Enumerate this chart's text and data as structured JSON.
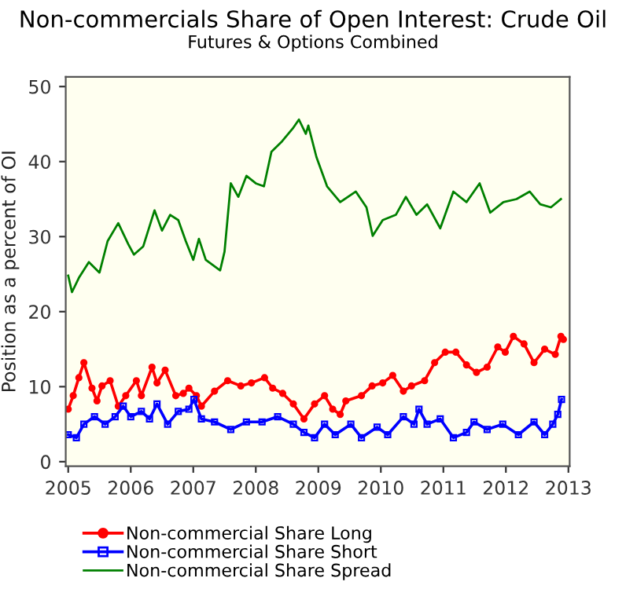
{
  "chart_data": {
    "type": "line",
    "title": "Non-commercials Share of Open Interest: Crude Oil",
    "subtitle": "Futures & Options Combined",
    "ylabel": "Position as a percent of OI",
    "xlim": [
      2004.96,
      2013.02
    ],
    "xticks": [
      2005,
      2006,
      2007,
      2008,
      2009,
      2010,
      2011,
      2012,
      2013
    ],
    "ylim": [
      -0.6,
      51.3
    ],
    "yticks": [
      0,
      10,
      20,
      30,
      40,
      50
    ],
    "grid": false,
    "legend": "bottom",
    "series": [
      {
        "name": "Non-commercial Share Long",
        "color": "#ff0000",
        "marker": "circle",
        "x": [
          2005.0,
          2005.08,
          2005.17,
          2005.25,
          2005.38,
          2005.46,
          2005.54,
          2005.67,
          2005.8,
          2005.92,
          2006.09,
          2006.17,
          2006.34,
          2006.42,
          2006.55,
          2006.72,
          2006.84,
          2006.93,
          2007.05,
          2007.13,
          2007.34,
          2007.55,
          2007.76,
          2007.93,
          2008.14,
          2008.27,
          2008.43,
          2008.6,
          2008.77,
          2008.94,
          2009.1,
          2009.23,
          2009.35,
          2009.44,
          2009.69,
          2009.86,
          2010.03,
          2010.19,
          2010.36,
          2010.49,
          2010.7,
          2010.86,
          2011.03,
          2011.2,
          2011.37,
          2011.53,
          2011.7,
          2011.87,
          2011.99,
          2012.12,
          2012.29,
          2012.45,
          2012.62,
          2012.79,
          2012.88,
          2012.92
        ],
        "values": [
          7.0,
          8.8,
          11.2,
          13.2,
          9.8,
          8.1,
          10.1,
          10.8,
          7.4,
          8.8,
          10.8,
          8.8,
          12.6,
          10.5,
          12.2,
          8.8,
          9.1,
          9.8,
          8.8,
          7.4,
          9.4,
          10.8,
          10.1,
          10.5,
          11.2,
          9.8,
          9.1,
          7.7,
          5.7,
          7.7,
          8.8,
          7.0,
          6.3,
          8.1,
          8.8,
          10.1,
          10.5,
          11.5,
          9.4,
          10.1,
          10.8,
          13.2,
          14.6,
          14.6,
          12.9,
          11.9,
          12.6,
          15.3,
          14.6,
          16.7,
          15.7,
          13.2,
          15.0,
          14.3,
          16.7,
          16.3
        ]
      },
      {
        "name": "Non-commercial Share Short",
        "color": "#0000ff",
        "marker": "square",
        "x": [
          2005.0,
          2005.13,
          2005.25,
          2005.42,
          2005.59,
          2005.75,
          2005.88,
          2006.0,
          2006.17,
          2006.3,
          2006.42,
          2006.59,
          2006.76,
          2006.93,
          2007.01,
          2007.13,
          2007.34,
          2007.6,
          2007.85,
          2008.1,
          2008.35,
          2008.6,
          2008.77,
          2008.94,
          2009.1,
          2009.27,
          2009.52,
          2009.69,
          2009.94,
          2010.11,
          2010.36,
          2010.53,
          2010.61,
          2010.74,
          2010.95,
          2011.16,
          2011.37,
          2011.49,
          2011.7,
          2011.95,
          2012.2,
          2012.45,
          2012.62,
          2012.75,
          2012.83,
          2012.89
        ],
        "values": [
          3.6,
          3.2,
          5.0,
          6.0,
          5.0,
          6.0,
          7.4,
          6.0,
          6.7,
          5.7,
          7.7,
          5.0,
          6.7,
          7.0,
          8.3,
          5.7,
          5.3,
          4.3,
          5.3,
          5.3,
          6.0,
          5.0,
          3.9,
          3.2,
          5.0,
          3.6,
          5.0,
          3.2,
          4.6,
          3.6,
          6.0,
          5.0,
          7.0,
          5.0,
          5.7,
          3.2,
          3.9,
          5.3,
          4.3,
          5.0,
          3.6,
          5.3,
          3.6,
          5.0,
          6.3,
          8.3
        ]
      },
      {
        "name": "Non-commercial Share Spread",
        "color": "#008000",
        "marker": "none",
        "x": [
          2005.0,
          2005.06,
          2005.17,
          2005.33,
          2005.5,
          2005.63,
          2005.8,
          2005.96,
          2006.05,
          2006.2,
          2006.38,
          2006.5,
          2006.63,
          2006.76,
          2006.88,
          2007.0,
          2007.09,
          2007.2,
          2007.43,
          2007.5,
          2007.6,
          2007.72,
          2007.85,
          2008.0,
          2008.13,
          2008.25,
          2008.42,
          2008.59,
          2008.69,
          2008.8,
          2008.84,
          2008.97,
          2009.14,
          2009.35,
          2009.6,
          2009.77,
          2009.87,
          2010.03,
          2010.24,
          2010.4,
          2010.57,
          2010.74,
          2010.95,
          2011.16,
          2011.37,
          2011.58,
          2011.75,
          2011.96,
          2012.17,
          2012.38,
          2012.55,
          2012.72,
          2012.88
        ],
        "values": [
          24.8,
          22.6,
          24.5,
          26.6,
          25.2,
          29.4,
          31.8,
          29.0,
          27.6,
          28.7,
          33.5,
          30.8,
          32.9,
          32.2,
          29.4,
          26.9,
          29.7,
          26.9,
          25.5,
          28.0,
          37.1,
          35.3,
          38.1,
          37.1,
          36.7,
          41.3,
          42.7,
          44.4,
          45.6,
          43.7,
          44.8,
          40.6,
          36.7,
          34.6,
          36.0,
          33.9,
          30.1,
          32.2,
          32.9,
          35.3,
          32.9,
          34.3,
          31.1,
          36.0,
          34.6,
          37.1,
          33.2,
          34.6,
          35.0,
          36.0,
          34.3,
          33.9,
          35.0
        ]
      }
    ]
  }
}
